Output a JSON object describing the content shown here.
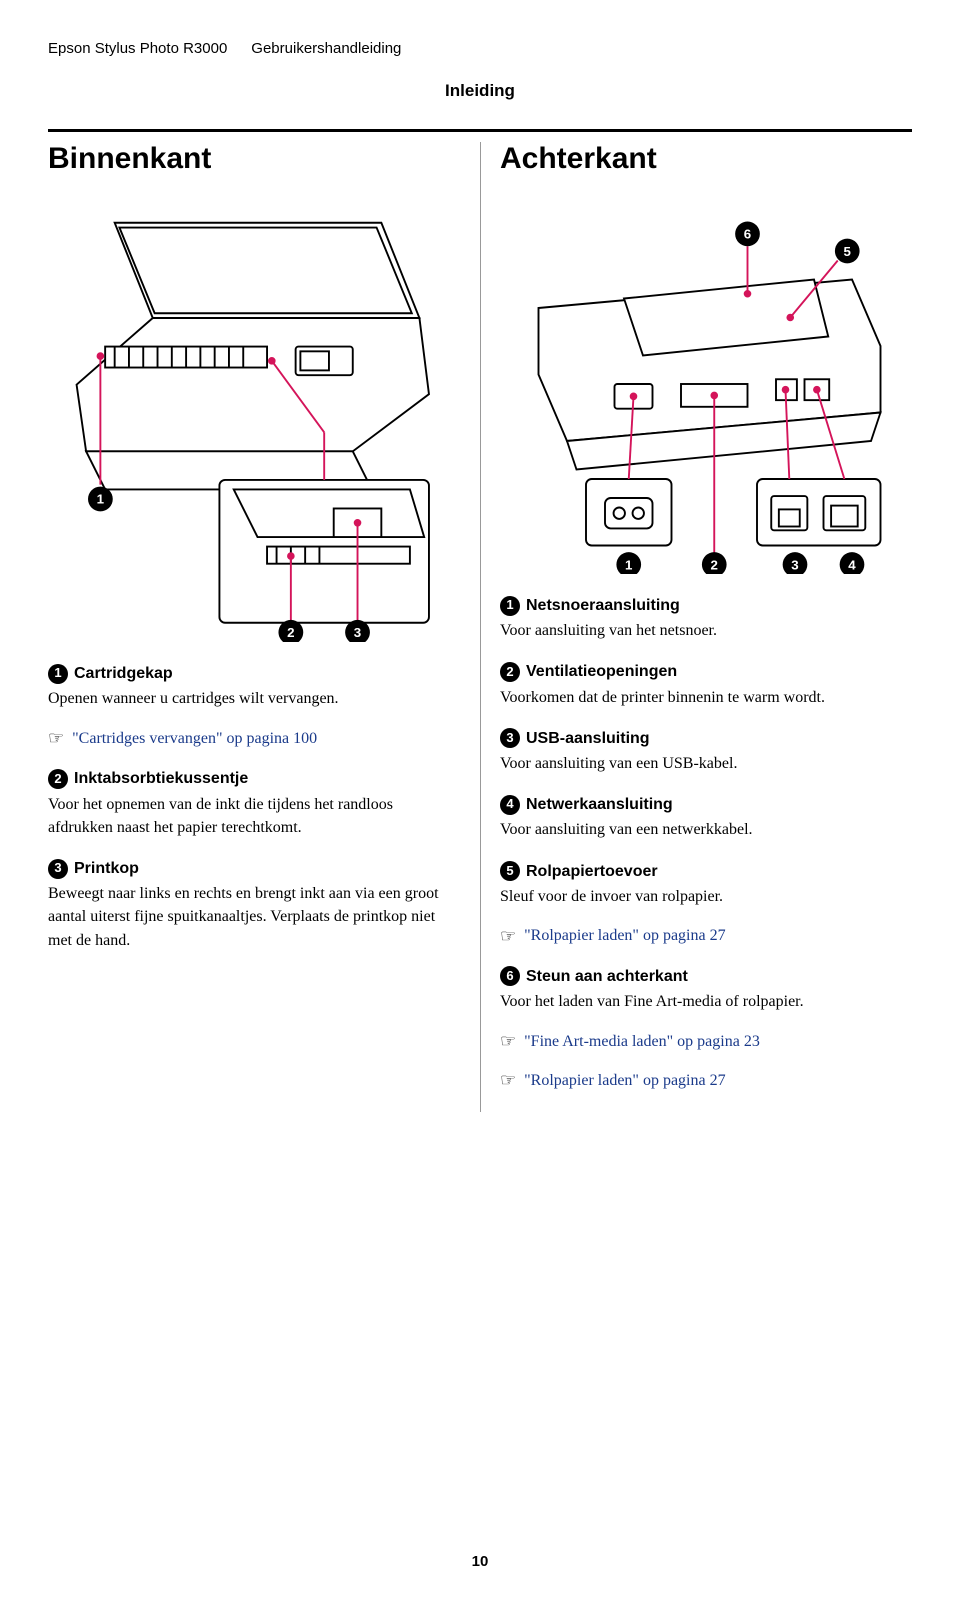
{
  "header": {
    "product": "Epson Stylus Photo R3000",
    "manual": "Gebruikershandleiding",
    "chapter": "Inleiding"
  },
  "page_number": "10",
  "colors": {
    "link": "#1a3a8a",
    "callout_line": "#d4145a",
    "text": "#000000"
  },
  "left": {
    "heading": "Binnenkant",
    "items": [
      {
        "num": "1",
        "title": "Cartridgekap",
        "body": "Openen wanneer u cartridges wilt vervangen.",
        "xref": "\"Cartridges vervangen\" op pagina 100"
      },
      {
        "num": "2",
        "title": "Inktabsorbtiekussentje",
        "body": "Voor het opnemen van de inkt die tijdens het randloos afdrukken naast het papier terechtkomt."
      },
      {
        "num": "3",
        "title": "Printkop",
        "body": "Beweegt naar links en rechts en brengt inkt aan via een groot aantal uiterst fijne spuitkanaaltjes. Verplaats de printkop niet met de hand."
      }
    ]
  },
  "right": {
    "heading": "Achterkant",
    "items": [
      {
        "num": "1",
        "title": "Netsnoeraansluiting",
        "body": "Voor aansluiting van het netsnoer."
      },
      {
        "num": "2",
        "title": "Ventilatieopeningen",
        "body": "Voorkomen dat de printer binnenin te warm wordt."
      },
      {
        "num": "3",
        "title": "USB-aansluiting",
        "body": "Voor aansluiting van een USB-kabel."
      },
      {
        "num": "4",
        "title": "Netwerkaansluiting",
        "body": "Voor aansluiting van een netwerkkabel."
      },
      {
        "num": "5",
        "title": "Rolpapiertoevoer",
        "body": "Sleuf voor de invoer van rolpapier.",
        "xref": "\"Rolpapier laden\" op pagina 27"
      },
      {
        "num": "6",
        "title": "Steun aan achterkant",
        "body": "Voor het laden van Fine Art-media of rolpapier.",
        "xrefs": [
          "\"Fine Art-media laden\" op pagina 23",
          "\"Rolpapier laden\" op pagina 27"
        ]
      }
    ]
  }
}
